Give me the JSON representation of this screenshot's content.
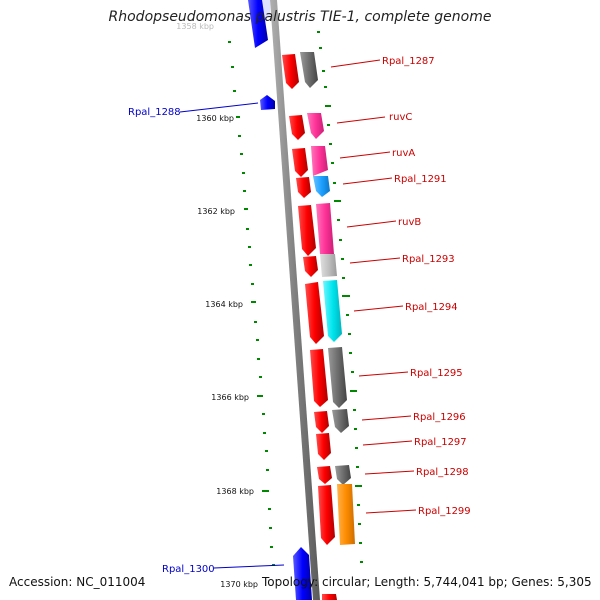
{
  "title": "Rhodopseudomonas palustris TIE-1, complete genome",
  "footer": {
    "accession": "Accession: NC_011004",
    "topology": "Topology: circular; Length: 5,744,041 bp; Genes: 5,305"
  },
  "scale": {
    "ticks": [
      "1360 kbp",
      "1362 kbp",
      "1364 kbp",
      "1366 kbp",
      "1368 kbp",
      "1370 kbp"
    ],
    "partial_top_label": "1358 kbp"
  },
  "genes": [
    {
      "name": "Rpal_1287",
      "strand": "forward",
      "cog_color": "#6e6e6e",
      "label_color": "#cc0000"
    },
    {
      "name": "Rpal_1288",
      "strand": "reverse",
      "cog_color": "#0000ff",
      "label_color": "#0000cc"
    },
    {
      "name": "ruvC",
      "strand": "forward",
      "cog_color": "#ff3399",
      "label_color": "#cc0000"
    },
    {
      "name": "ruvA",
      "strand": "forward",
      "cog_color": "#ff3399",
      "label_color": "#cc0000"
    },
    {
      "name": "Rpal_1291",
      "strand": "forward",
      "cog_color": "#1ea0ff",
      "label_color": "#cc0000"
    },
    {
      "name": "ruvB",
      "strand": "forward",
      "cog_color": "#ff3399",
      "label_color": "#cc0000"
    },
    {
      "name": "Rpal_1293",
      "strand": "forward",
      "cog_color": "#c0c0c0",
      "label_color": "#cc0000"
    },
    {
      "name": "Rpal_1294",
      "strand": "forward",
      "cog_color": "#00e5ee",
      "label_color": "#cc0000"
    },
    {
      "name": "Rpal_1295",
      "strand": "forward",
      "cog_color": "#6e6e6e",
      "label_color": "#cc0000"
    },
    {
      "name": "Rpal_1296",
      "strand": "forward",
      "cog_color": "#6e6e6e",
      "label_color": "#cc0000"
    },
    {
      "name": "Rpal_1297",
      "strand": "forward",
      "cog_color": null,
      "label_color": "#cc0000"
    },
    {
      "name": "Rpal_1298",
      "strand": "forward",
      "cog_color": "#6e6e6e",
      "label_color": "#cc0000"
    },
    {
      "name": "Rpal_1299",
      "strand": "forward",
      "cog_color": "#ff8c00",
      "label_color": "#cc0000"
    },
    {
      "name": "Rpal_1300",
      "strand": "reverse",
      "cog_color": "#0000ff",
      "label_color": "#0000cc"
    }
  ],
  "colors": {
    "forward_cds": "#ff0000",
    "reverse_cds": "#0000ff",
    "backbone": "#808080",
    "gc_skew": "#008800"
  }
}
